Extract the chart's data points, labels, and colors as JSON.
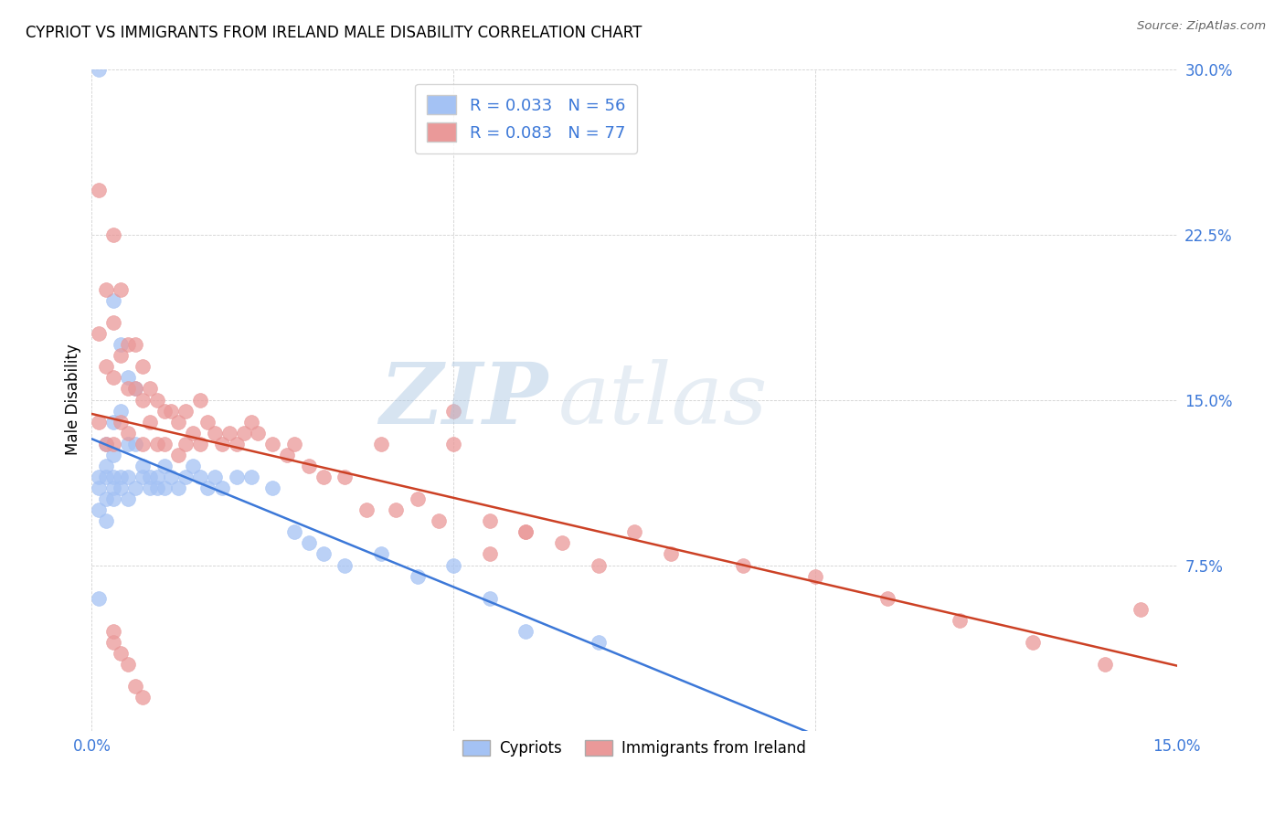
{
  "title": "CYPRIOT VS IMMIGRANTS FROM IRELAND MALE DISABILITY CORRELATION CHART",
  "source": "Source: ZipAtlas.com",
  "ylabel": "Male Disability",
  "xlim": [
    0.0,
    0.15
  ],
  "ylim": [
    0.0,
    0.3
  ],
  "watermark_zip": "ZIP",
  "watermark_atlas": "atlas",
  "legend_label1": "Cypriots",
  "legend_label2": "Immigrants from Ireland",
  "R1": 0.033,
  "N1": 56,
  "R2": 0.083,
  "N2": 77,
  "color1": "#a4c2f4",
  "color2": "#ea9999",
  "line_color1": "#3c78d8",
  "line_color2": "#cc4125",
  "cypriot_x": [
    0.001,
    0.001,
    0.001,
    0.001,
    0.002,
    0.002,
    0.002,
    0.002,
    0.002,
    0.003,
    0.003,
    0.003,
    0.003,
    0.003,
    0.003,
    0.004,
    0.004,
    0.004,
    0.004,
    0.005,
    0.005,
    0.005,
    0.005,
    0.006,
    0.006,
    0.006,
    0.007,
    0.007,
    0.008,
    0.008,
    0.009,
    0.009,
    0.01,
    0.01,
    0.011,
    0.012,
    0.013,
    0.014,
    0.015,
    0.016,
    0.017,
    0.018,
    0.02,
    0.022,
    0.025,
    0.028,
    0.03,
    0.032,
    0.035,
    0.04,
    0.045,
    0.05,
    0.055,
    0.06,
    0.07,
    0.001
  ],
  "cypriot_y": [
    0.3,
    0.115,
    0.11,
    0.1,
    0.13,
    0.12,
    0.115,
    0.105,
    0.095,
    0.195,
    0.14,
    0.125,
    0.115,
    0.11,
    0.105,
    0.175,
    0.145,
    0.115,
    0.11,
    0.16,
    0.13,
    0.115,
    0.105,
    0.155,
    0.13,
    0.11,
    0.12,
    0.115,
    0.115,
    0.11,
    0.115,
    0.11,
    0.12,
    0.11,
    0.115,
    0.11,
    0.115,
    0.12,
    0.115,
    0.11,
    0.115,
    0.11,
    0.115,
    0.115,
    0.11,
    0.09,
    0.085,
    0.08,
    0.075,
    0.08,
    0.07,
    0.075,
    0.06,
    0.045,
    0.04,
    0.06
  ],
  "ireland_x": [
    0.001,
    0.001,
    0.001,
    0.002,
    0.002,
    0.002,
    0.003,
    0.003,
    0.003,
    0.003,
    0.004,
    0.004,
    0.004,
    0.005,
    0.005,
    0.005,
    0.006,
    0.006,
    0.007,
    0.007,
    0.007,
    0.008,
    0.008,
    0.009,
    0.009,
    0.01,
    0.01,
    0.011,
    0.012,
    0.012,
    0.013,
    0.013,
    0.014,
    0.015,
    0.015,
    0.016,
    0.017,
    0.018,
    0.019,
    0.02,
    0.021,
    0.022,
    0.023,
    0.025,
    0.027,
    0.028,
    0.03,
    0.032,
    0.035,
    0.038,
    0.04,
    0.042,
    0.045,
    0.048,
    0.05,
    0.055,
    0.06,
    0.065,
    0.07,
    0.075,
    0.08,
    0.09,
    0.1,
    0.11,
    0.12,
    0.13,
    0.14,
    0.145,
    0.055,
    0.06,
    0.003,
    0.004,
    0.005,
    0.006,
    0.007,
    0.003,
    0.05
  ],
  "ireland_y": [
    0.245,
    0.18,
    0.14,
    0.2,
    0.165,
    0.13,
    0.225,
    0.185,
    0.16,
    0.13,
    0.2,
    0.17,
    0.14,
    0.175,
    0.155,
    0.135,
    0.175,
    0.155,
    0.165,
    0.15,
    0.13,
    0.155,
    0.14,
    0.15,
    0.13,
    0.145,
    0.13,
    0.145,
    0.14,
    0.125,
    0.145,
    0.13,
    0.135,
    0.15,
    0.13,
    0.14,
    0.135,
    0.13,
    0.135,
    0.13,
    0.135,
    0.14,
    0.135,
    0.13,
    0.125,
    0.13,
    0.12,
    0.115,
    0.115,
    0.1,
    0.13,
    0.1,
    0.105,
    0.095,
    0.13,
    0.095,
    0.09,
    0.085,
    0.075,
    0.09,
    0.08,
    0.075,
    0.07,
    0.06,
    0.05,
    0.04,
    0.03,
    0.055,
    0.08,
    0.09,
    0.04,
    0.035,
    0.03,
    0.02,
    0.015,
    0.045,
    0.145
  ]
}
